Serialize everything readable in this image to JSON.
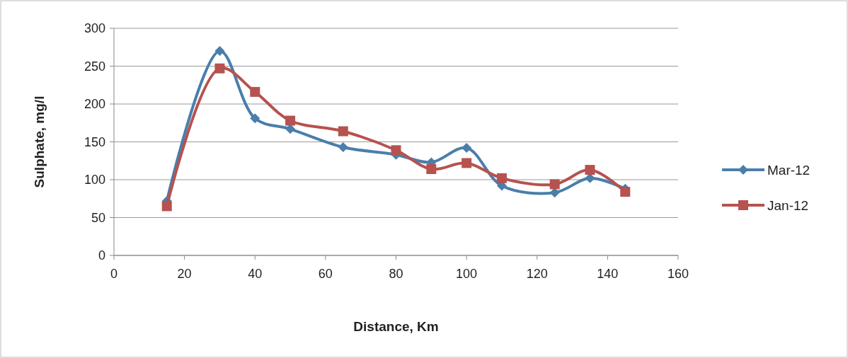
{
  "chart_data": {
    "type": "line",
    "xlabel": "Distance, Km",
    "ylabel": "Sulphate, mg/l",
    "xlim": [
      0,
      160
    ],
    "xticks": [
      0,
      20,
      40,
      60,
      80,
      100,
      120,
      140,
      160
    ],
    "ylim": [
      0,
      300
    ],
    "yticks": [
      0,
      50,
      100,
      150,
      200,
      250,
      300
    ],
    "grid": "y",
    "legend": "right",
    "line_style": "solid",
    "x": [
      15,
      30,
      40,
      50,
      65,
      80,
      90,
      100,
      110,
      125,
      135,
      145
    ],
    "series": [
      {
        "name": "Mar-12",
        "color": "#4a7eab",
        "marker": "diamond",
        "values": [
          72,
          270,
          181,
          167,
          143,
          133,
          123,
          142,
          92,
          83,
          102,
          88
        ]
      },
      {
        "name": "Jan-12",
        "color": "#b6524f",
        "marker": "square",
        "values": [
          65,
          247,
          216,
          178,
          164,
          139,
          114,
          122,
          102,
          94,
          113,
          84
        ]
      }
    ]
  }
}
